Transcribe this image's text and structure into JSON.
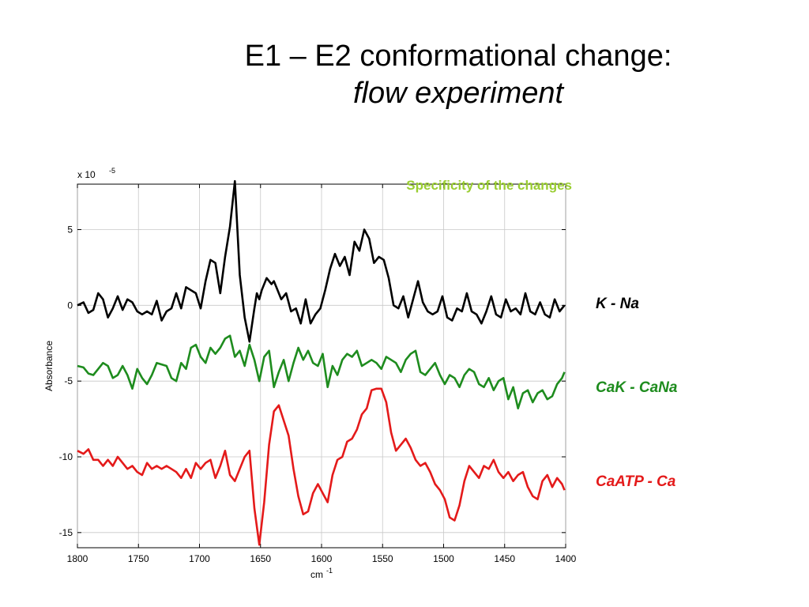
{
  "slide": {
    "title_line1": "E1 – E2 conformational change:",
    "title_line2": "flow experiment"
  },
  "chart_data": {
    "type": "line",
    "annotation": "Specificity of the changes",
    "annotation_color": "#9acd32",
    "xlabel": "cm",
    "xlabel_superscript": "-1",
    "ylabel": "Absorbance",
    "y_multiplier_label": "x 10",
    "y_multiplier_exponent": "-5",
    "xlim": [
      1800,
      1400
    ],
    "ylim": [
      -16,
      8
    ],
    "x_ticks": [
      1800,
      1750,
      1700,
      1650,
      1600,
      1550,
      1500,
      1450,
      1400
    ],
    "y_ticks": [
      5,
      0,
      -5,
      -10,
      -15
    ],
    "grid": true,
    "series": [
      {
        "name": "K -  Na",
        "color": "#000000",
        "x": [
          1800,
          1795,
          1791,
          1787,
          1783,
          1779,
          1775,
          1771,
          1767,
          1763,
          1759,
          1755,
          1751,
          1747,
          1743,
          1739,
          1735,
          1731,
          1727,
          1723,
          1719,
          1715,
          1711,
          1707,
          1703,
          1699,
          1695,
          1691,
          1687,
          1683,
          1679,
          1675,
          1671,
          1667,
          1663,
          1659,
          1655,
          1653,
          1651,
          1649,
          1645,
          1641,
          1639,
          1637,
          1633,
          1629,
          1625,
          1621,
          1617,
          1613,
          1609,
          1605,
          1601,
          1597,
          1593,
          1589,
          1585,
          1581,
          1577,
          1573,
          1569,
          1565,
          1561,
          1557,
          1553,
          1549,
          1545,
          1541,
          1537,
          1533,
          1529,
          1525,
          1521,
          1517,
          1513,
          1509,
          1505,
          1501,
          1497,
          1493,
          1489,
          1485,
          1481,
          1477,
          1473,
          1469,
          1465,
          1461,
          1457,
          1453,
          1449,
          1445,
          1441,
          1437,
          1433,
          1429,
          1425,
          1421,
          1417,
          1413,
          1409,
          1405,
          1401
        ],
        "y": [
          0,
          0.2,
          -0.5,
          -0.3,
          0.8,
          0.4,
          -0.8,
          -0.2,
          0.6,
          -0.3,
          0.4,
          0.2,
          -0.4,
          -0.6,
          -0.4,
          -0.6,
          0.3,
          -1.0,
          -0.4,
          -0.2,
          0.8,
          -0.2,
          1.2,
          1.0,
          0.8,
          -0.2,
          1.6,
          3.0,
          2.8,
          0.8,
          3.2,
          5.2,
          8.2,
          2.0,
          -0.8,
          -2.4,
          -0.2,
          0.8,
          0.4,
          1.0,
          1.8,
          1.4,
          1.6,
          1.2,
          0.4,
          0.8,
          -0.4,
          -0.2,
          -1.2,
          0.4,
          -1.2,
          -0.6,
          -0.2,
          1.0,
          2.4,
          3.4,
          2.6,
          3.2,
          2.0,
          4.2,
          3.6,
          5.0,
          4.4,
          2.8,
          3.2,
          3.0,
          1.8,
          0,
          -0.2,
          0.6,
          -0.8,
          0.4,
          1.6,
          0.2,
          -0.4,
          -0.6,
          -0.4,
          0.6,
          -0.8,
          -1.0,
          -0.2,
          -0.4,
          0.8,
          -0.4,
          -0.6,
          -1.2,
          -0.4,
          0.6,
          -0.6,
          -0.8,
          0.4,
          -0.4,
          -0.2,
          -0.6,
          0.8,
          -0.4,
          -0.6,
          0.2,
          -0.6,
          -0.8,
          0.4,
          -0.4,
          0
        ]
      },
      {
        "name": "CaK - CaNa",
        "color": "#1e8c1e",
        "x": [
          1800,
          1795,
          1791,
          1787,
          1783,
          1779,
          1775,
          1771,
          1767,
          1763,
          1759,
          1755,
          1751,
          1747,
          1743,
          1739,
          1735,
          1731,
          1727,
          1723,
          1719,
          1715,
          1711,
          1707,
          1703,
          1699,
          1695,
          1691,
          1687,
          1683,
          1679,
          1675,
          1671,
          1667,
          1663,
          1659,
          1655,
          1651,
          1647,
          1643,
          1639,
          1635,
          1631,
          1627,
          1623,
          1619,
          1615,
          1611,
          1607,
          1603,
          1599,
          1595,
          1591,
          1587,
          1583,
          1579,
          1575,
          1571,
          1567,
          1563,
          1559,
          1555,
          1551,
          1547,
          1543,
          1539,
          1535,
          1531,
          1527,
          1523,
          1519,
          1515,
          1511,
          1507,
          1503,
          1499,
          1495,
          1491,
          1487,
          1483,
          1479,
          1475,
          1471,
          1467,
          1463,
          1459,
          1455,
          1451,
          1447,
          1443,
          1439,
          1435,
          1431,
          1427,
          1423,
          1419,
          1415,
          1411,
          1407,
          1403,
          1401
        ],
        "y": [
          -4.0,
          -4.1,
          -4.5,
          -4.6,
          -4.2,
          -3.8,
          -4.0,
          -4.8,
          -4.6,
          -4.0,
          -4.6,
          -5.5,
          -4.2,
          -4.8,
          -5.2,
          -4.6,
          -3.8,
          -3.9,
          -4.0,
          -4.8,
          -5.0,
          -3.8,
          -4.2,
          -2.8,
          -2.6,
          -3.4,
          -3.8,
          -2.8,
          -3.2,
          -2.8,
          -2.2,
          -2.0,
          -3.4,
          -3.0,
          -4.0,
          -2.6,
          -3.6,
          -5.0,
          -3.4,
          -3.0,
          -5.4,
          -4.4,
          -3.6,
          -5.0,
          -3.8,
          -2.8,
          -3.6,
          -3.0,
          -3.8,
          -4.0,
          -3.2,
          -5.4,
          -4.0,
          -4.6,
          -3.6,
          -3.2,
          -3.4,
          -3.0,
          -4.0,
          -3.8,
          -3.6,
          -3.8,
          -4.2,
          -3.4,
          -3.6,
          -3.8,
          -4.4,
          -3.6,
          -3.2,
          -3.0,
          -4.4,
          -4.6,
          -4.2,
          -3.8,
          -4.6,
          -5.2,
          -4.6,
          -4.8,
          -5.4,
          -4.6,
          -4.2,
          -4.4,
          -5.2,
          -5.4,
          -4.8,
          -5.6,
          -5.0,
          -4.8,
          -6.2,
          -5.4,
          -6.8,
          -5.8,
          -5.6,
          -6.4,
          -5.8,
          -5.6,
          -6.2,
          -6.0,
          -5.2,
          -4.8,
          -4.4
        ]
      },
      {
        "name": "CaATP - Ca",
        "color": "#e41a1a",
        "x": [
          1800,
          1795,
          1791,
          1787,
          1783,
          1779,
          1775,
          1771,
          1767,
          1763,
          1759,
          1755,
          1751,
          1747,
          1743,
          1739,
          1735,
          1731,
          1727,
          1723,
          1719,
          1715,
          1711,
          1707,
          1703,
          1699,
          1695,
          1691,
          1687,
          1683,
          1679,
          1675,
          1671,
          1667,
          1663,
          1659,
          1655,
          1651,
          1647,
          1643,
          1639,
          1635,
          1631,
          1627,
          1623,
          1619,
          1615,
          1611,
          1607,
          1603,
          1599,
          1595,
          1591,
          1587,
          1583,
          1579,
          1575,
          1571,
          1567,
          1563,
          1559,
          1555,
          1551,
          1547,
          1543,
          1539,
          1535,
          1531,
          1527,
          1523,
          1519,
          1515,
          1511,
          1507,
          1503,
          1499,
          1495,
          1491,
          1487,
          1483,
          1479,
          1475,
          1471,
          1467,
          1463,
          1459,
          1455,
          1451,
          1447,
          1443,
          1439,
          1435,
          1431,
          1427,
          1423,
          1419,
          1415,
          1411,
          1407,
          1403,
          1401
        ],
        "y": [
          -9.6,
          -9.8,
          -9.5,
          -10.2,
          -10.2,
          -10.6,
          -10.2,
          -10.6,
          -10.0,
          -10.4,
          -10.8,
          -10.6,
          -11.0,
          -11.2,
          -10.4,
          -10.8,
          -10.6,
          -10.8,
          -10.6,
          -10.8,
          -11.0,
          -11.4,
          -10.8,
          -11.4,
          -10.4,
          -10.8,
          -10.4,
          -10.2,
          -11.4,
          -10.6,
          -9.6,
          -11.2,
          -11.6,
          -10.8,
          -10.0,
          -9.6,
          -13.4,
          -15.8,
          -13.0,
          -9.2,
          -7.0,
          -6.6,
          -7.6,
          -8.6,
          -10.8,
          -12.6,
          -13.8,
          -13.6,
          -12.4,
          -11.8,
          -12.4,
          -13.0,
          -11.2,
          -10.2,
          -10.0,
          -9.0,
          -8.8,
          -8.2,
          -7.2,
          -6.8,
          -5.6,
          -5.5,
          -5.5,
          -6.4,
          -8.4,
          -9.6,
          -9.2,
          -8.8,
          -9.4,
          -10.2,
          -10.6,
          -10.4,
          -11.0,
          -11.8,
          -12.2,
          -12.8,
          -14.0,
          -14.2,
          -13.2,
          -11.6,
          -10.6,
          -11.0,
          -11.4,
          -10.6,
          -10.8,
          -10.2,
          -11.0,
          -11.4,
          -11.0,
          -11.6,
          -11.2,
          -11.0,
          -12.0,
          -12.6,
          -12.8,
          -11.6,
          -11.2,
          -12.0,
          -11.4,
          -11.8,
          -12.2
        ]
      }
    ]
  }
}
